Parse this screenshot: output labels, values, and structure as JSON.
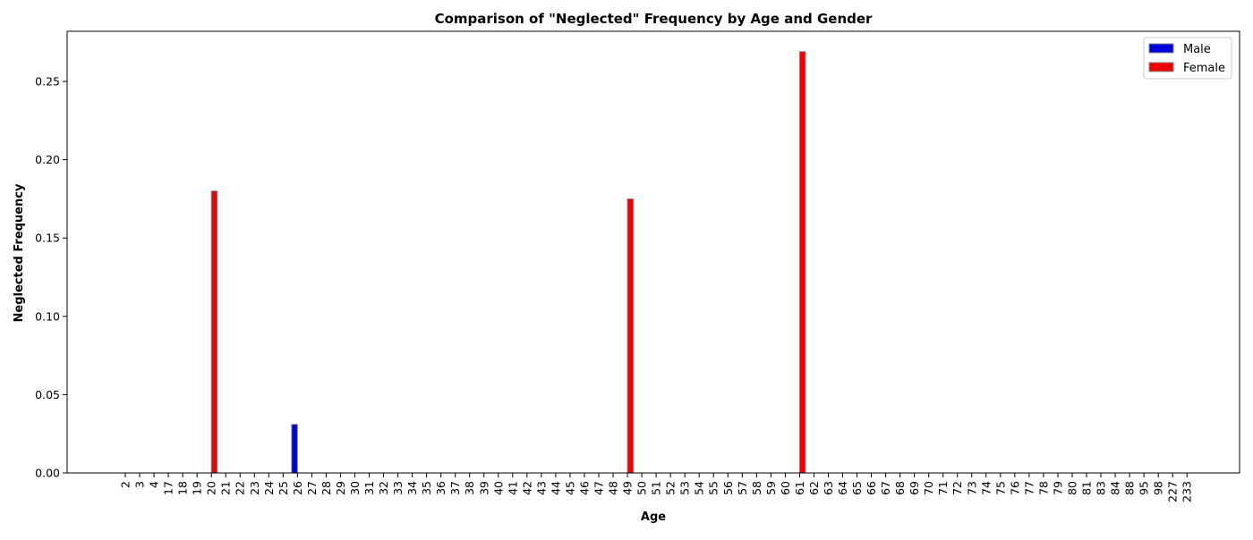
{
  "chart_data": {
    "type": "bar",
    "title": "Comparison of \"Neglected\" Frequency by Age and Gender",
    "xlabel": "Age",
    "ylabel": "Neglected Frequency",
    "ylim": [
      0,
      0.282
    ],
    "yticks": [
      "0.00",
      "0.05",
      "0.10",
      "0.15",
      "0.20",
      "0.25"
    ],
    "categories": [
      "2",
      "3",
      "4",
      "17",
      "18",
      "19",
      "20",
      "21",
      "22",
      "23",
      "24",
      "25",
      "26",
      "27",
      "28",
      "29",
      "30",
      "31",
      "32",
      "33",
      "34",
      "35",
      "36",
      "37",
      "38",
      "39",
      "40",
      "41",
      "42",
      "43",
      "44",
      "45",
      "46",
      "47",
      "48",
      "49",
      "50",
      "51",
      "52",
      "53",
      "54",
      "55",
      "56",
      "57",
      "58",
      "59",
      "60",
      "61",
      "62",
      "63",
      "64",
      "65",
      "66",
      "67",
      "68",
      "69",
      "70",
      "71",
      "72",
      "73",
      "74",
      "75",
      "76",
      "77",
      "78",
      "79",
      "80",
      "81",
      "83",
      "84",
      "88",
      "95",
      "98",
      "227",
      "233"
    ],
    "series": [
      {
        "name": "Male",
        "color": "#0000dd",
        "values": [
          0,
          0,
          0,
          0,
          0,
          0,
          0,
          0,
          0,
          0,
          0,
          0,
          0.031,
          0,
          0,
          0,
          0,
          0,
          0,
          0,
          0,
          0,
          0,
          0,
          0,
          0,
          0,
          0,
          0,
          0,
          0,
          0,
          0,
          0,
          0,
          0,
          0,
          0,
          0,
          0,
          0,
          0,
          0,
          0,
          0,
          0,
          0,
          0,
          0,
          0,
          0,
          0,
          0,
          0,
          0,
          0,
          0,
          0,
          0,
          0,
          0,
          0,
          0,
          0,
          0,
          0,
          0,
          0,
          0,
          0,
          0,
          0,
          0,
          0,
          0
        ]
      },
      {
        "name": "Female",
        "color": "#ee0000",
        "values": [
          0,
          0,
          0,
          0,
          0,
          0,
          0.18,
          0,
          0,
          0,
          0,
          0,
          0,
          0,
          0,
          0,
          0,
          0,
          0,
          0,
          0,
          0,
          0,
          0,
          0,
          0,
          0,
          0,
          0,
          0,
          0,
          0,
          0,
          0,
          0,
          0.175,
          0,
          0,
          0,
          0,
          0,
          0,
          0,
          0,
          0,
          0,
          0,
          0.269,
          0,
          0,
          0,
          0,
          0,
          0,
          0,
          0,
          0,
          0,
          0,
          0,
          0,
          0,
          0,
          0,
          0,
          0,
          0,
          0,
          0,
          0,
          0,
          0,
          0,
          0,
          0
        ]
      }
    ],
    "legend_position": "top-right",
    "grid": false
  }
}
